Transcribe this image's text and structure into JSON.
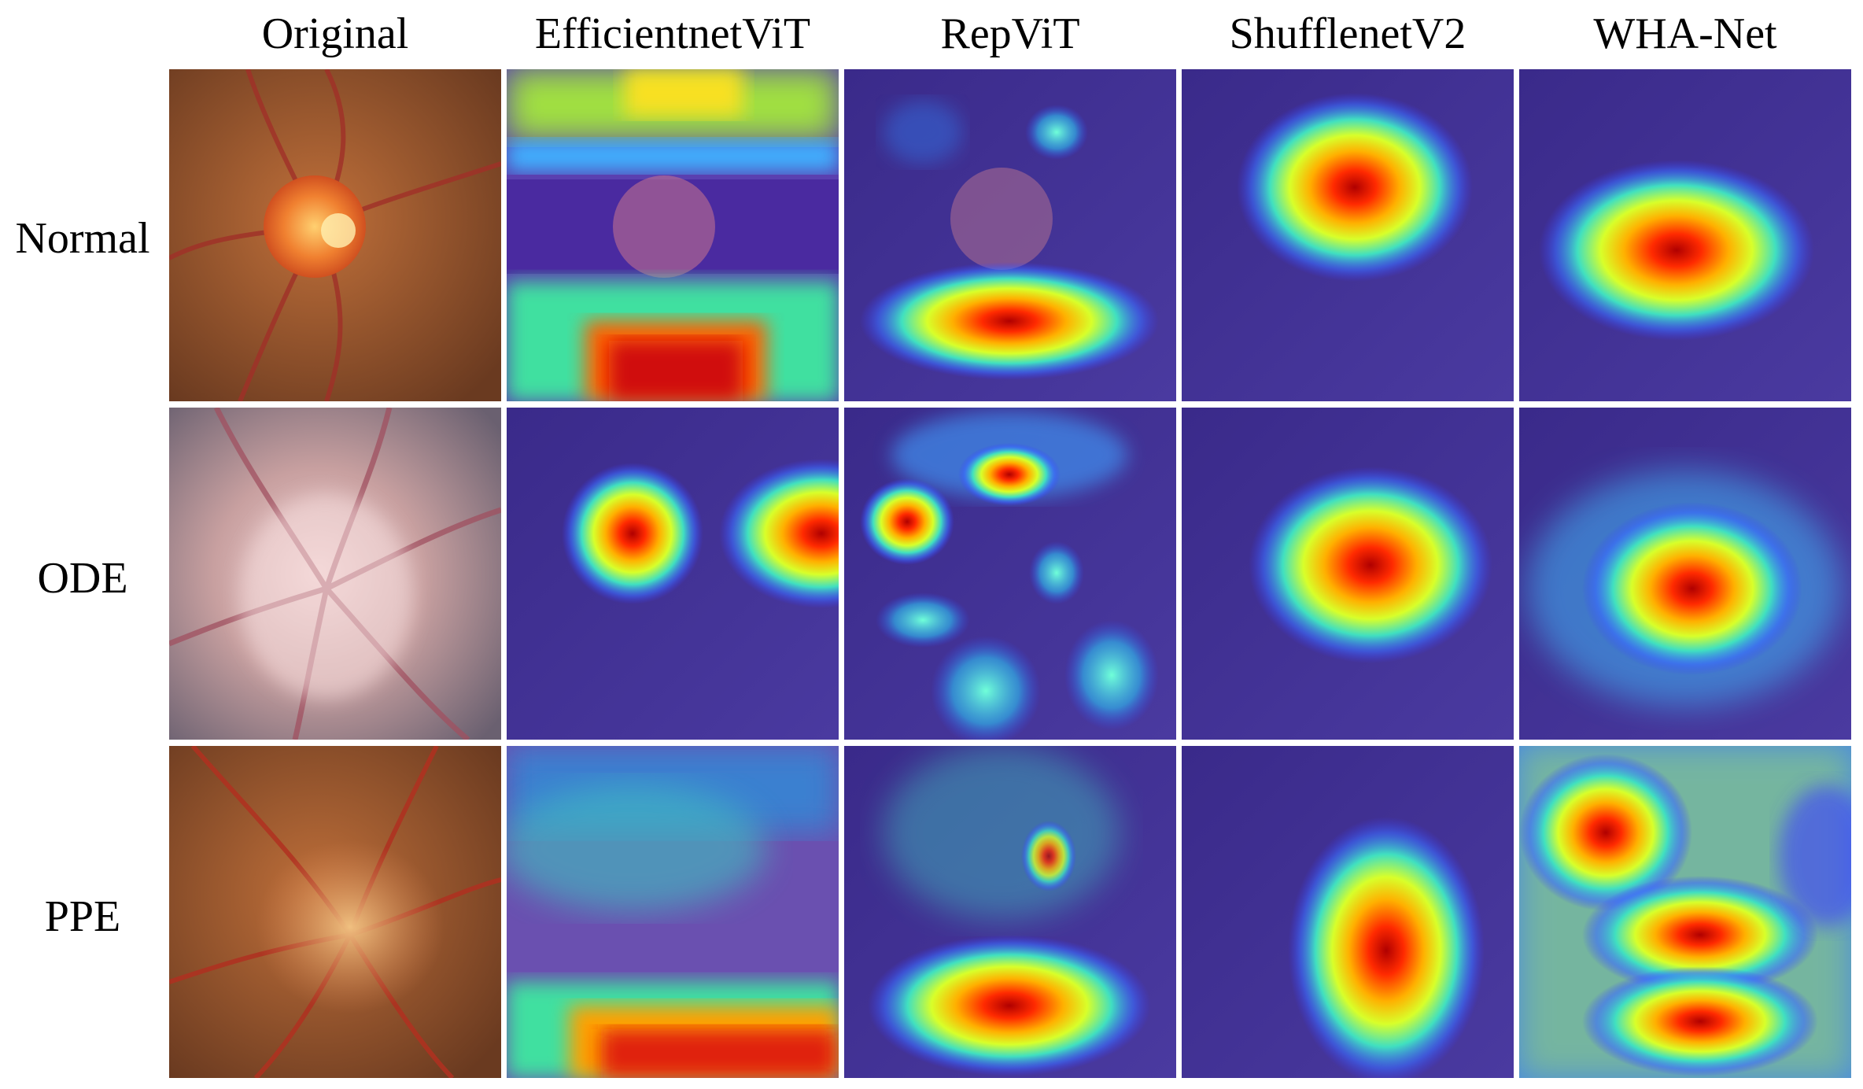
{
  "columns": [
    "Original",
    "EfficientnetViT",
    "RepViT",
    "ShufflenetV2",
    "WHA-Net"
  ],
  "rows": [
    "Normal",
    "ODE",
    "PPE"
  ]
}
